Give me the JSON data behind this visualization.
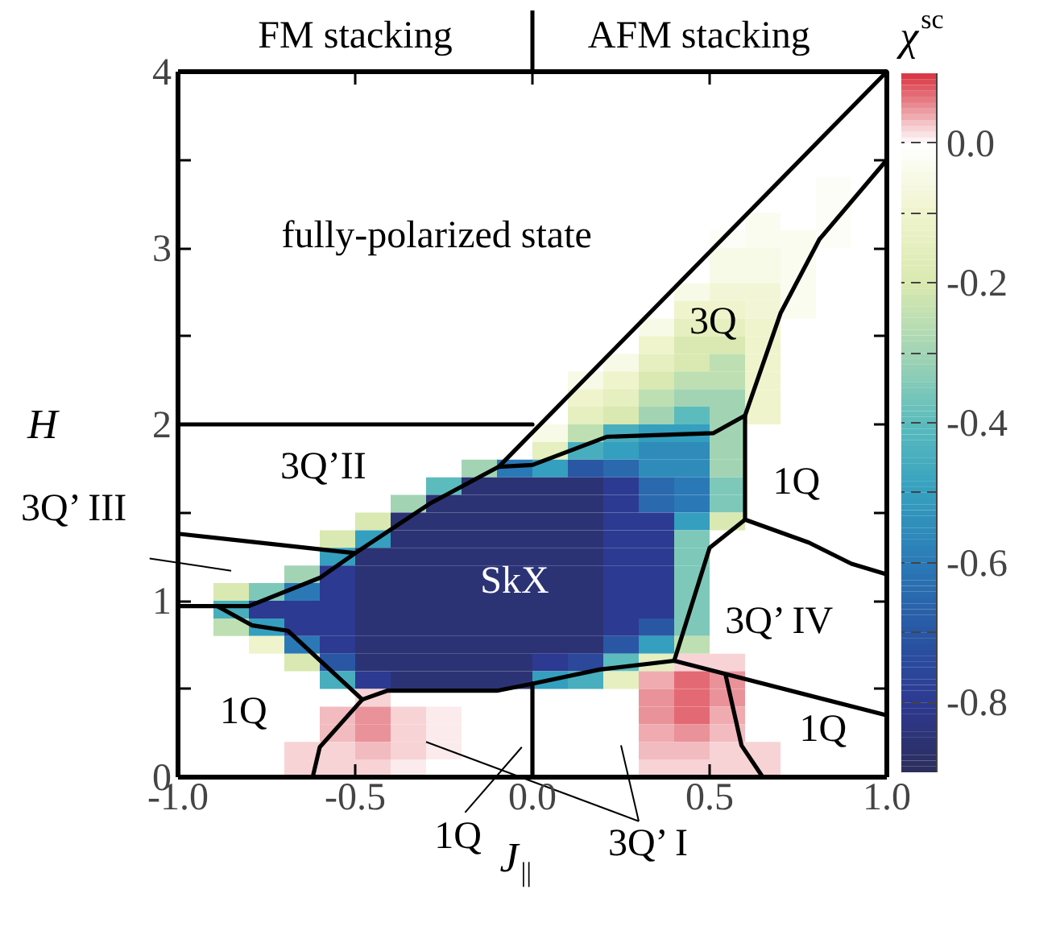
{
  "chart_data": {
    "type": "heatmap",
    "xlabel": "J$_{||}$",
    "ylabel": "H",
    "clabel": "χ$^{sc}$",
    "xlim": [
      -1,
      1
    ],
    "ylim": [
      0,
      4
    ],
    "xticks": [
      {
        "value": -1,
        "label": "-1.0"
      },
      {
        "value": -0.5,
        "label": "-0.5"
      },
      {
        "value": 0,
        "label": "0.0"
      },
      {
        "value": 0.5,
        "label": "0.5"
      },
      {
        "value": 1,
        "label": "1.0"
      }
    ],
    "yticks": [
      0,
      {
        "value": 0.5,
        "label": null
      },
      1,
      {
        "value": 1.5,
        "label": null
      },
      2,
      {
        "value": 2.5,
        "label": null
      },
      3,
      {
        "value": 3.5,
        "label": null
      },
      4
    ],
    "clim": [
      -0.9,
      0.1
    ],
    "cticks": [
      {
        "value": 0,
        "label": "0.0"
      },
      {
        "value": -0.1,
        "label": null
      },
      {
        "value": -0.2,
        "label": "-0.2"
      },
      {
        "value": -0.3,
        "label": null
      },
      {
        "value": -0.4,
        "label": "-0.4"
      },
      {
        "value": -0.5,
        "label": null
      },
      {
        "value": -0.6,
        "label": "-0.6"
      },
      {
        "value": -0.7,
        "label": null
      },
      {
        "value": -0.8,
        "label": "-0.8"
      }
    ],
    "x": [
      -0.95,
      -0.85,
      -0.75,
      -0.65,
      -0.55,
      -0.45,
      -0.35,
      -0.25,
      -0.15,
      -0.05,
      0.05,
      0.15,
      0.25,
      0.35,
      0.45,
      0.55,
      0.65,
      0.75,
      0.85,
      0.95
    ],
    "y": [
      3.35,
      3.25,
      3.15,
      3.05,
      2.95,
      2.85,
      2.75,
      2.65,
      2.55,
      2.45,
      2.35,
      2.25,
      2.15,
      2.05,
      1.95,
      1.85,
      1.75,
      1.65,
      1.55,
      1.45,
      1.35,
      1.25,
      1.15,
      1.05,
      0.95,
      0.85,
      0.75,
      0.65,
      0.55,
      0.45,
      0.35,
      0.25,
      0.15,
      0.05
    ],
    "cells": [
      [
        null,
        null,
        null,
        null,
        null,
        null,
        null,
        null,
        null,
        null,
        null,
        null,
        null,
        null,
        null,
        null,
        null,
        null,
        -0.02,
        null
      ],
      [
        null,
        null,
        null,
        null,
        null,
        null,
        null,
        null,
        null,
        null,
        null,
        null,
        null,
        null,
        null,
        null,
        null,
        null,
        -0.02,
        null
      ],
      [
        null,
        null,
        null,
        null,
        null,
        null,
        null,
        null,
        null,
        null,
        null,
        null,
        null,
        null,
        null,
        null,
        -0.03,
        null,
        -0.02,
        null
      ],
      [
        null,
        null,
        null,
        null,
        null,
        null,
        null,
        null,
        null,
        null,
        null,
        null,
        null,
        null,
        null,
        -0.02,
        -0.03,
        -0.03,
        -0.02,
        null
      ],
      [
        null,
        null,
        null,
        null,
        null,
        null,
        null,
        null,
        null,
        null,
        null,
        null,
        null,
        null,
        null,
        -0.05,
        -0.05,
        -0.03,
        null,
        null
      ],
      [
        null,
        null,
        null,
        null,
        null,
        null,
        null,
        null,
        null,
        null,
        null,
        null,
        null,
        null,
        null,
        -0.05,
        -0.05,
        -0.03,
        null,
        null
      ],
      [
        null,
        null,
        null,
        null,
        null,
        null,
        null,
        null,
        null,
        null,
        null,
        null,
        null,
        null,
        -0.05,
        -0.08,
        -0.08,
        -0.03,
        null,
        null
      ],
      [
        null,
        null,
        null,
        null,
        null,
        null,
        null,
        null,
        null,
        null,
        null,
        null,
        null,
        null,
        -0.1,
        -0.1,
        -0.08,
        -0.03,
        null,
        null
      ],
      [
        null,
        null,
        null,
        null,
        null,
        null,
        null,
        null,
        null,
        null,
        null,
        null,
        null,
        -0.05,
        -0.15,
        -0.15,
        -0.1,
        null,
        null,
        null
      ],
      [
        null,
        null,
        null,
        null,
        null,
        null,
        null,
        null,
        null,
        null,
        null,
        null,
        null,
        -0.1,
        -0.2,
        -0.2,
        -0.1,
        null,
        null,
        null
      ],
      [
        null,
        null,
        null,
        null,
        null,
        null,
        null,
        null,
        null,
        null,
        null,
        null,
        -0.05,
        -0.15,
        -0.2,
        -0.25,
        -0.1,
        null,
        null,
        null
      ],
      [
        null,
        null,
        null,
        null,
        null,
        null,
        null,
        null,
        null,
        null,
        null,
        -0.05,
        -0.1,
        -0.2,
        -0.25,
        -0.25,
        -0.1,
        null,
        null,
        null
      ],
      [
        null,
        null,
        null,
        null,
        null,
        null,
        null,
        null,
        null,
        null,
        null,
        -0.1,
        -0.15,
        -0.25,
        -0.3,
        -0.3,
        -0.1,
        null,
        null,
        null
      ],
      [
        null,
        null,
        null,
        null,
        null,
        null,
        null,
        null,
        null,
        null,
        null,
        -0.15,
        -0.2,
        -0.3,
        -0.4,
        -0.3,
        -0.1,
        null,
        null,
        null
      ],
      [
        null,
        null,
        null,
        null,
        null,
        null,
        null,
        null,
        null,
        null,
        -0.05,
        -0.25,
        -0.45,
        -0.5,
        -0.5,
        -0.3,
        null,
        null,
        null,
        null
      ],
      [
        null,
        null,
        null,
        null,
        null,
        null,
        null,
        null,
        null,
        null,
        -0.15,
        -0.45,
        -0.5,
        -0.55,
        -0.55,
        -0.3,
        null,
        null,
        null,
        null
      ],
      [
        null,
        null,
        null,
        null,
        null,
        null,
        null,
        null,
        -0.3,
        -0.6,
        -0.5,
        -0.7,
        -0.65,
        -0.55,
        -0.55,
        -0.3,
        null,
        null,
        null,
        null
      ],
      [
        null,
        null,
        null,
        null,
        null,
        null,
        null,
        -0.4,
        -0.85,
        -0.85,
        -0.85,
        -0.85,
        -0.8,
        -0.65,
        -0.6,
        -0.35,
        null,
        null,
        null,
        null
      ],
      [
        null,
        null,
        null,
        null,
        null,
        null,
        -0.3,
        -0.85,
        -0.85,
        -0.85,
        -0.85,
        -0.85,
        -0.8,
        -0.65,
        -0.6,
        -0.35,
        null,
        null,
        null,
        null
      ],
      [
        null,
        null,
        null,
        null,
        null,
        -0.2,
        -0.85,
        -0.85,
        -0.85,
        -0.85,
        -0.85,
        -0.85,
        -0.8,
        -0.8,
        -0.5,
        -0.2,
        null,
        null,
        null,
        null
      ],
      [
        null,
        null,
        null,
        null,
        -0.2,
        -0.5,
        -0.85,
        -0.85,
        -0.85,
        -0.85,
        -0.85,
        -0.85,
        -0.8,
        -0.8,
        -0.35,
        null,
        null,
        null,
        null,
        null
      ],
      [
        null,
        null,
        null,
        null,
        -0.5,
        -0.85,
        -0.85,
        -0.85,
        -0.85,
        -0.85,
        -0.85,
        -0.85,
        -0.8,
        -0.8,
        -0.35,
        null,
        null,
        null,
        null,
        null
      ],
      [
        null,
        null,
        null,
        -0.3,
        -0.8,
        -0.85,
        -0.85,
        -0.85,
        -0.85,
        -0.85,
        -0.85,
        -0.85,
        -0.8,
        -0.8,
        -0.35,
        null,
        null,
        null,
        null,
        null
      ],
      [
        null,
        -0.2,
        -0.35,
        -0.6,
        -0.8,
        -0.85,
        -0.85,
        -0.85,
        -0.85,
        -0.85,
        -0.85,
        -0.85,
        -0.8,
        -0.8,
        -0.35,
        null,
        null,
        null,
        null,
        null
      ],
      [
        null,
        -0.45,
        -0.8,
        -0.8,
        -0.8,
        -0.85,
        -0.85,
        -0.85,
        -0.85,
        -0.85,
        -0.85,
        -0.85,
        -0.8,
        -0.8,
        -0.35,
        null,
        null,
        null,
        null,
        null
      ],
      [
        null,
        -0.25,
        -0.5,
        -0.8,
        -0.8,
        -0.85,
        -0.85,
        -0.85,
        -0.85,
        -0.85,
        -0.85,
        -0.85,
        -0.8,
        -0.7,
        -0.35,
        null,
        null,
        null,
        null,
        null
      ],
      [
        null,
        null,
        -0.1,
        -0.6,
        -0.8,
        -0.85,
        -0.85,
        -0.85,
        -0.85,
        -0.85,
        -0.85,
        -0.85,
        -0.7,
        -0.5,
        -0.25,
        null,
        null,
        null,
        null,
        null
      ],
      [
        null,
        null,
        null,
        -0.2,
        -0.7,
        -0.85,
        -0.85,
        -0.85,
        -0.85,
        -0.85,
        -0.8,
        -0.75,
        -0.4,
        -0.15,
        0.02,
        0.02,
        null,
        null,
        null,
        null
      ],
      [
        null,
        null,
        null,
        null,
        -0.45,
        -0.8,
        -0.85,
        -0.85,
        -0.85,
        -0.85,
        -0.5,
        -0.45,
        -0.15,
        0.04,
        0.07,
        0.05,
        null,
        null,
        null,
        null
      ],
      [
        null,
        null,
        null,
        null,
        null,
        0.02,
        null,
        null,
        null,
        null,
        null,
        null,
        null,
        0.05,
        0.07,
        0.05,
        null,
        null,
        null,
        null
      ],
      [
        null,
        null,
        null,
        null,
        0.03,
        0.05,
        0.02,
        0.01,
        null,
        null,
        null,
        null,
        null,
        0.05,
        0.07,
        0.04,
        null,
        null,
        null,
        null
      ],
      [
        null,
        null,
        null,
        null,
        0.03,
        0.05,
        0.02,
        0.01,
        null,
        null,
        null,
        null,
        null,
        0.04,
        0.05,
        0.03,
        null,
        null,
        null,
        null
      ],
      [
        null,
        null,
        null,
        0.02,
        0.02,
        0.03,
        0.02,
        0.01,
        null,
        null,
        null,
        null,
        null,
        0.03,
        0.03,
        0.02,
        0.02,
        null,
        null,
        null
      ],
      [
        null,
        null,
        null,
        0.02,
        0.02,
        0.02,
        0.01,
        null,
        null,
        null,
        null,
        null,
        null,
        0.02,
        0.02,
        0.02,
        0.02,
        null,
        null,
        null
      ]
    ],
    "series": [
      {
        "type": "line",
        "color": "#000000",
        "x": [
          -1,
          0
        ],
        "values": [
          2,
          2
        ]
      },
      {
        "type": "line",
        "color": "#000000",
        "x": [
          -0.095,
          1
        ],
        "values": [
          1.76,
          4
        ]
      },
      {
        "type": "line",
        "color": "#000000",
        "x": [
          -1,
          -0.89,
          -0.8,
          -0.6,
          -0.5,
          -0.29,
          -0.095,
          0,
          0.21,
          0.51,
          0.6
        ],
        "values": [
          0.97,
          0.97,
          0.97,
          1.13,
          1.27,
          1.55,
          1.76,
          1.77,
          1.93,
          1.95,
          2.05
        ]
      },
      {
        "type": "line",
        "color": "#000000",
        "x": [
          0.6,
          0.6,
          0.65,
          0.7,
          0.81,
          1
        ],
        "values": [
          1.46,
          2.05,
          2.34,
          2.63,
          3.05,
          3.5
        ]
      },
      {
        "type": "line",
        "color": "#000000",
        "x": [
          0.4,
          0.5,
          0.6
        ],
        "values": [
          0.66,
          1.3,
          1.46
        ]
      },
      {
        "type": "line",
        "color": "#000000",
        "x": [
          0.6,
          0.78,
          0.9,
          1
        ],
        "values": [
          1.46,
          1.33,
          1.21,
          1.15
        ]
      },
      {
        "type": "line",
        "color": "#000000",
        "x": [
          -0.48,
          -0.41,
          -0.1,
          0,
          0.19,
          0.4,
          1
        ],
        "values": [
          0.44,
          0.49,
          0.49,
          0.53,
          0.61,
          0.66,
          0.35
        ]
      },
      {
        "type": "line",
        "color": "#000000",
        "x": [
          -0.89,
          -0.79,
          -0.69,
          -0.48
        ],
        "values": [
          0.97,
          0.86,
          0.83,
          0.44
        ]
      },
      {
        "type": "line",
        "color": "#000000",
        "x": [
          -1,
          -0.5
        ],
        "values": [
          1.38,
          1.27
        ]
      },
      {
        "type": "line",
        "color": "#000000",
        "x": [
          -0.48,
          -0.6,
          -0.62
        ],
        "values": [
          0.44,
          0.17,
          0
        ]
      },
      {
        "type": "line",
        "color": "#000000",
        "x": [
          0,
          0
        ],
        "values": [
          0.53,
          0
        ]
      },
      {
        "type": "line",
        "color": "#000000",
        "x": [
          0.545,
          0.59,
          0.65
        ],
        "values": [
          0.58,
          0.18,
          0
        ]
      }
    ],
    "annotations": [
      "FM stacking",
      "AFM stacking",
      "fully-polarized state",
      "3Q",
      "3Q’II",
      "1Q",
      "SkX",
      "3Q’ III",
      "3Q’ IV",
      "1Q",
      "1Q",
      "1Q",
      "3Q’ I"
    ]
  }
}
